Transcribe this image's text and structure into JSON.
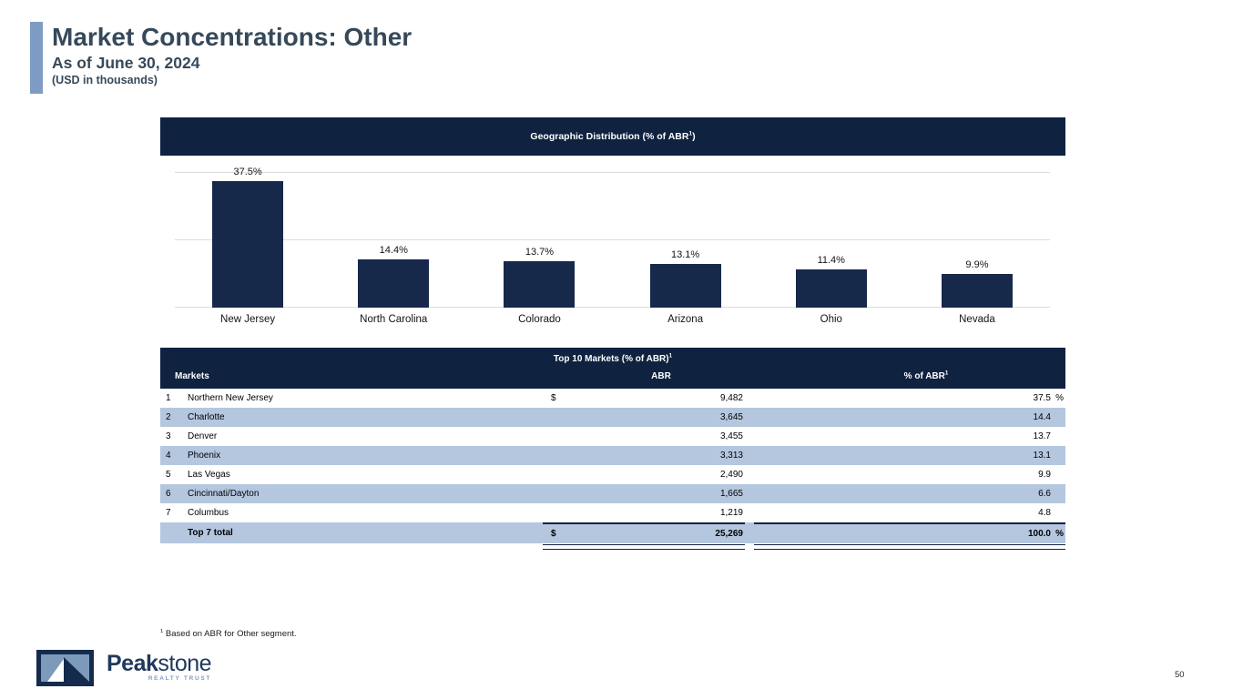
{
  "slide": {
    "title": "Market Concentrations: Other",
    "subtitle": "As of June 30, 2024",
    "unit_note": "(USD in thousands)",
    "page_number": "50",
    "footnote_sup": "1",
    "footnote_text": "Based on ABR for Other segment."
  },
  "colors": {
    "navy": "#0f2240",
    "bar": "#17294b",
    "stripe": "#b4c7df",
    "accent": "#7e9cc3",
    "title": "#36495a",
    "grid": "#dcdcdc"
  },
  "chart_data": {
    "type": "bar",
    "title_pre": "Geographic Distribution (% of ABR",
    "title_sup": "1",
    "title_post": ")",
    "categories": [
      "New Jersey",
      "North Carolina",
      "Colorado",
      "Arizona",
      "Ohio",
      "Nevada"
    ],
    "values": [
      37.5,
      14.4,
      13.7,
      13.1,
      11.4,
      9.9
    ],
    "value_labels": [
      "37.5%",
      "14.4%",
      "13.7%",
      "13.1%",
      "11.4%",
      "9.9%"
    ],
    "ylim": [
      0,
      40
    ],
    "gridline_values": [
      0,
      20,
      40
    ],
    "grid": "horizontal only",
    "legend_position": "none",
    "bar_color": "#17294b"
  },
  "table": {
    "title_pre": "Top 10 Markets (% of ABR)",
    "title_sup": "1",
    "col_markets": "Markets",
    "col_abr": "ABR",
    "col_pct_pre": "% of ABR",
    "col_pct_sup": "1",
    "rows": [
      {
        "rank": "1",
        "market": "Northern New Jersey",
        "currency": "$",
        "abr": "9,482",
        "pct": "37.5",
        "pct_unit": "%"
      },
      {
        "rank": "2",
        "market": "Charlotte",
        "currency": "",
        "abr": "3,645",
        "pct": "14.4",
        "pct_unit": ""
      },
      {
        "rank": "3",
        "market": "Denver",
        "currency": "",
        "abr": "3,455",
        "pct": "13.7",
        "pct_unit": ""
      },
      {
        "rank": "4",
        "market": "Phoenix",
        "currency": "",
        "abr": "3,313",
        "pct": "13.1",
        "pct_unit": ""
      },
      {
        "rank": "5",
        "market": "Las Vegas",
        "currency": "",
        "abr": "2,490",
        "pct": "9.9",
        "pct_unit": ""
      },
      {
        "rank": "6",
        "market": "Cincinnati/Dayton",
        "currency": "",
        "abr": "1,665",
        "pct": "6.6",
        "pct_unit": ""
      },
      {
        "rank": "7",
        "market": "Columbus",
        "currency": "",
        "abr": "1,219",
        "pct": "4.8",
        "pct_unit": ""
      }
    ],
    "total_row": {
      "label": "Top 7 total",
      "currency": "$",
      "abr": "25,269",
      "pct": "100.0",
      "pct_unit": "%"
    }
  },
  "logo": {
    "brand_bold": "Peak",
    "brand_light": "stone",
    "tagline": "REALTY TRUST"
  }
}
